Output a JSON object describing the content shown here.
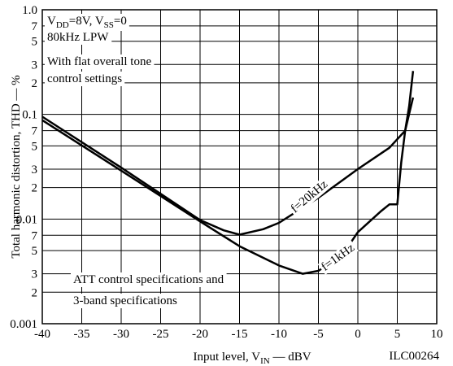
{
  "chart_data": {
    "type": "line",
    "xlabel": [
      {
        "text": "Input level, V"
      },
      {
        "text": "IN",
        "sub": true
      },
      {
        "text": " — dBV"
      }
    ],
    "ylabel": "Total harmonic distortion, THD — %",
    "code": "ILC00264",
    "annotations_top": [
      [
        {
          "text": "V"
        },
        {
          "text": "DD",
          "sub": true
        },
        {
          "text": "=8V, V"
        },
        {
          "text": "SS",
          "sub": true
        },
        {
          "text": "=0"
        }
      ],
      [
        {
          "text": "80kHz LPW"
        }
      ],
      [
        {
          "text": "With flat overall tone"
        }
      ],
      [
        {
          "text": "control settings"
        }
      ]
    ],
    "annotations_bottom": [
      "ATT control specifications and",
      "3-band specifications"
    ],
    "xlim": [
      -40,
      10
    ],
    "xticks": [
      -40,
      -35,
      -30,
      -25,
      -20,
      -15,
      -10,
      -5,
      0,
      5,
      10
    ],
    "ylim": [
      0.001,
      1
    ],
    "ylog": true,
    "yticks": [
      0.001,
      {
        "value": 0.002,
        "label": "2"
      },
      {
        "value": 0.003,
        "label": "3"
      },
      {
        "value": 0.005,
        "label": "5"
      },
      {
        "value": 0.007,
        "label": "7"
      },
      0.01,
      {
        "value": 0.02,
        "label": "2"
      },
      {
        "value": 0.03,
        "label": "3"
      },
      {
        "value": 0.05,
        "label": "5"
      },
      {
        "value": 0.07,
        "label": "7"
      },
      0.1,
      {
        "value": 0.2,
        "label": "2"
      },
      {
        "value": 0.3,
        "label": "3"
      },
      {
        "value": 0.5,
        "label": "5"
      },
      {
        "value": 0.7,
        "label": "7"
      },
      {
        "value": 1,
        "label": "1.0"
      }
    ],
    "grid": true,
    "series": [
      {
        "name": "f=20kHz",
        "color": "#000000",
        "x": [
          -40,
          -30,
          -20,
          -17,
          -15,
          -12,
          -10,
          -5,
          0,
          4,
          6,
          6.5,
          7
        ],
        "values": [
          0.095,
          0.031,
          0.0098,
          0.0078,
          0.0071,
          0.008,
          0.0092,
          0.016,
          0.03,
          0.048,
          0.07,
          0.12,
          0.26
        ]
      },
      {
        "name": "f=1kHz",
        "color": "#000000",
        "x": [
          -40,
          -30,
          -20,
          -15,
          -10,
          -7,
          -5,
          -2,
          0,
          3,
          4,
          5,
          5.5,
          6,
          7
        ],
        "values": [
          0.088,
          0.029,
          0.0095,
          0.0055,
          0.0036,
          0.003,
          0.0032,
          0.0045,
          0.0075,
          0.012,
          0.0138,
          0.0138,
          0.035,
          0.07,
          0.145
        ]
      }
    ]
  }
}
